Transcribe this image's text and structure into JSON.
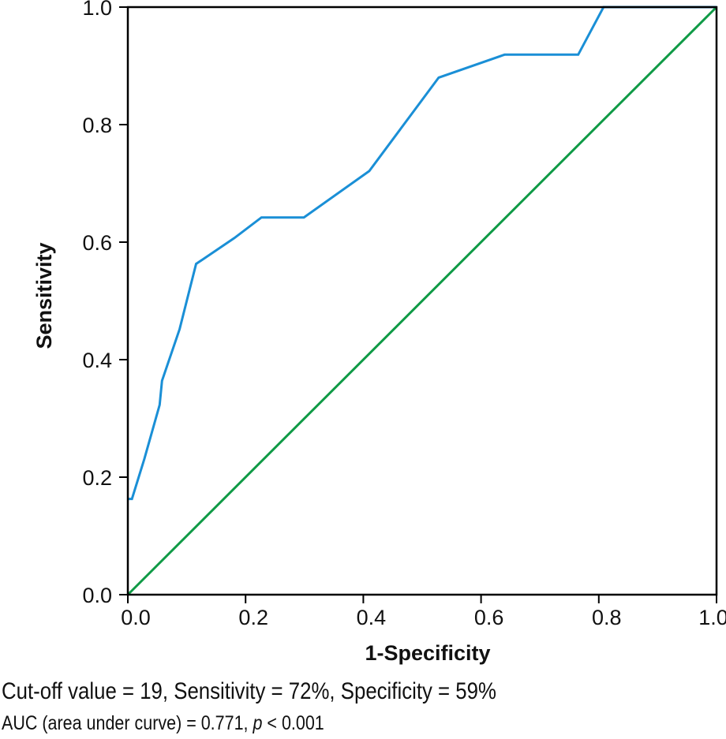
{
  "chart_data": {
    "type": "line",
    "title": "",
    "xlabel": "1-Specificity",
    "ylabel": "Sensitivity",
    "xlim": [
      0,
      1
    ],
    "ylim": [
      0,
      1
    ],
    "xticks": [
      "0.0",
      "0.2",
      "0.4",
      "0.6",
      "0.8",
      "1.0"
    ],
    "yticks": [
      "0.0",
      "0.2",
      "0.4",
      "0.6",
      "0.8",
      "1.0"
    ],
    "grid": false,
    "legend": null,
    "series": [
      {
        "name": "ROC curve",
        "color": "#1a8fd6",
        "x": [
          0.0,
          0.007,
          0.028,
          0.054,
          0.058,
          0.088,
          0.116,
          0.181,
          0.227,
          0.299,
          0.41,
          0.528,
          0.64,
          0.765,
          0.808,
          1.0
        ],
        "y": [
          0.163,
          0.163,
          0.231,
          0.323,
          0.364,
          0.452,
          0.563,
          0.607,
          0.642,
          0.642,
          0.721,
          0.88,
          0.919,
          0.919,
          1.0,
          1.0
        ]
      },
      {
        "name": "Reference line",
        "color": "#0f9a46",
        "x": [
          0.0,
          1.0
        ],
        "y": [
          0.0,
          1.0
        ]
      }
    ],
    "annotations": [
      "Cut-off value = 19, Sensitivity = 72%, Specificity = 59%",
      "AUC (area under curve) = 0.771, p < 0.001"
    ]
  },
  "caption": {
    "line1": "Cut-off value = 19, Sensitivity = 72%, Specificity = 59%",
    "line2_prefix": "AUC (area under curve) = 0.771, ",
    "line2_p": "p",
    "line2_suffix": " < 0.001"
  }
}
